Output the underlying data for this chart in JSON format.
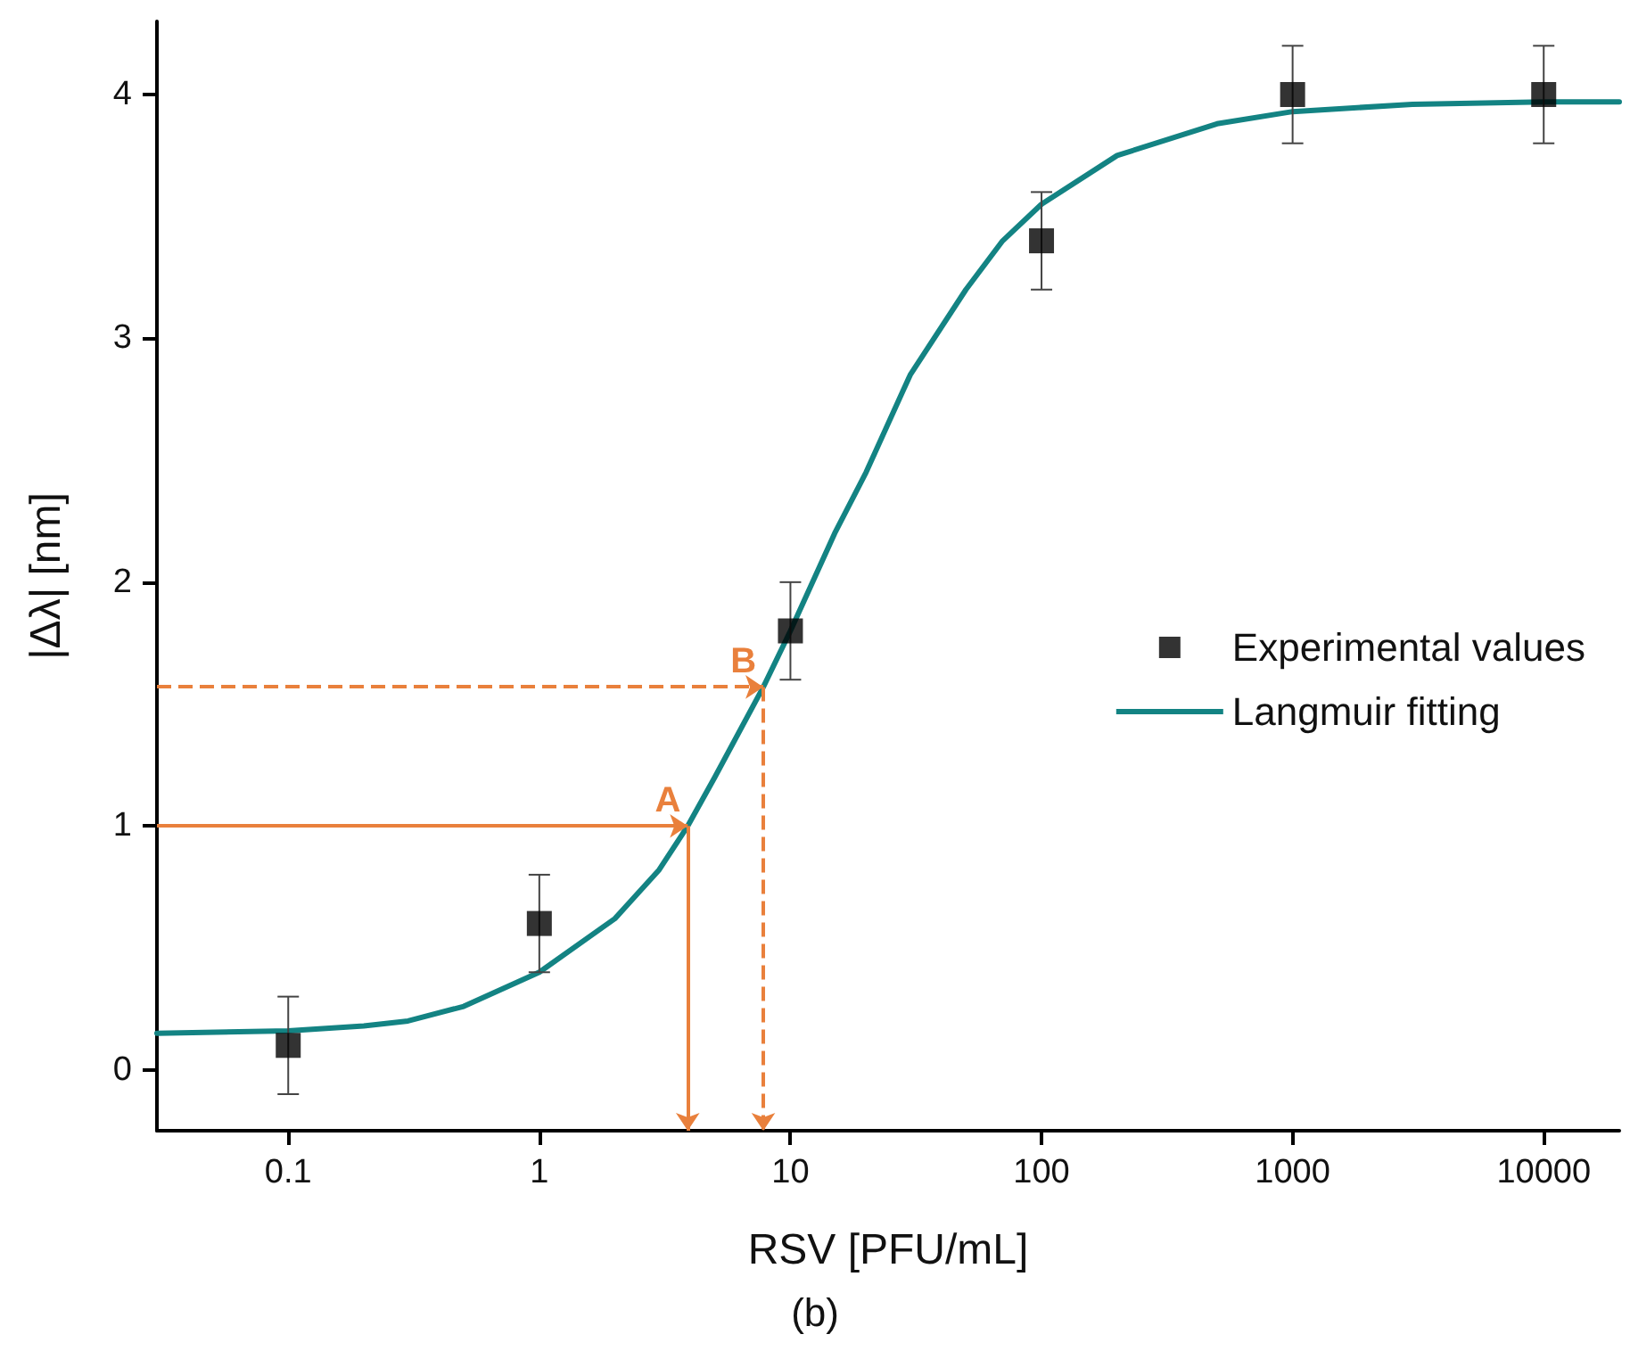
{
  "chart_data": {
    "type": "scatter",
    "xlabel": "RSV [PFU/mL]",
    "ylabel": "|Δλ| [nm]",
    "log": "x",
    "xlim": [
      0.03,
      20000
    ],
    "xticks": [
      0.1,
      1,
      10,
      100,
      1000,
      10000
    ],
    "ylim": [
      -0.25,
      4.3
    ],
    "yticks": [
      0,
      1,
      2,
      3,
      4
    ],
    "grid": false,
    "legend": "right",
    "marker": "square",
    "series": [
      {
        "name": "Experimental values",
        "type": "scatter",
        "color": "#000000",
        "x": [
          0.1,
          1,
          10,
          100,
          1000,
          10000
        ],
        "values": [
          0.1,
          0.6,
          1.8,
          3.4,
          4,
          4
        ],
        "errors": [
          0.2,
          0.2,
          0.2,
          0.2,
          0.2,
          0.2
        ]
      },
      {
        "name": "Langmuir fitting",
        "type": "line",
        "color": "#138383",
        "marker": "none",
        "line_style": "solid",
        "x": [
          0.03,
          0.1,
          0.2,
          0.3,
          0.5,
          1,
          2,
          3,
          3.9,
          5,
          7.8,
          10,
          15,
          20,
          30,
          50,
          70,
          100,
          200,
          500,
          1000,
          3000,
          10000,
          20000
        ],
        "values": [
          0.15,
          0.16,
          0.18,
          0.2,
          0.26,
          0.4,
          0.62,
          0.82,
          1.0,
          1.2,
          1.57,
          1.8,
          2.2,
          2.45,
          2.85,
          3.2,
          3.4,
          3.55,
          3.75,
          3.88,
          3.93,
          3.96,
          3.97,
          3.97
        ]
      }
    ],
    "annotations": [
      {
        "text": "A",
        "x": 3.9,
        "y": 1
      },
      {
        "text": "B",
        "x": 7.8,
        "y": 1.57
      },
      "(b)"
    ]
  }
}
